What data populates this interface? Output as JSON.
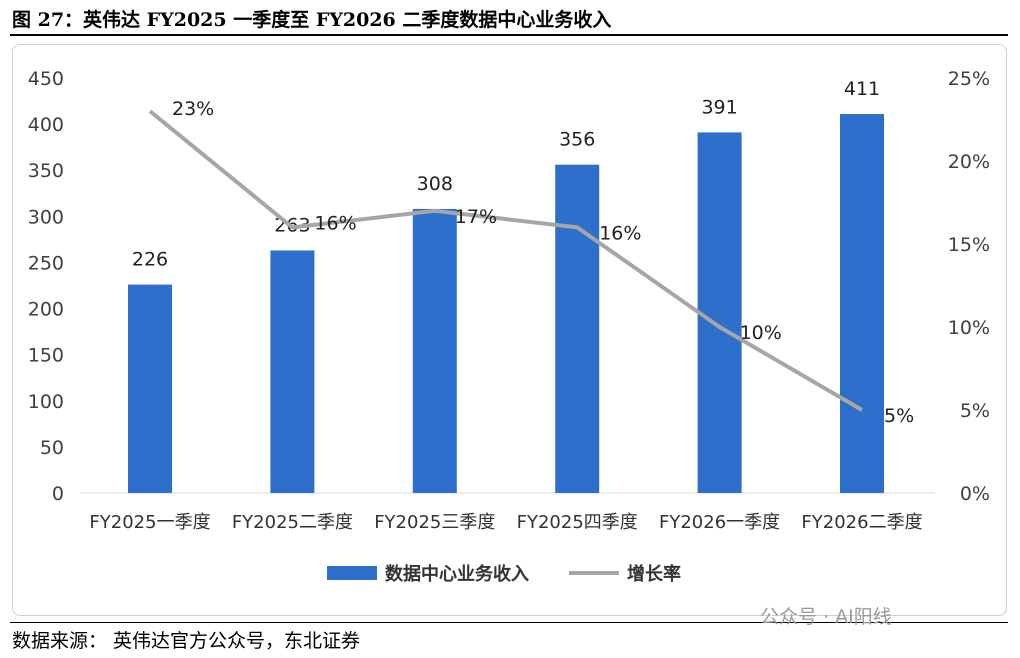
{
  "title": "图 27：英伟达 FY2025 一季度至 FY2026 二季度数据中心业务收入",
  "source": "数据来源：  英伟达官方公众号，东北证券",
  "watermark": "公众号 · AI阳线",
  "chart_data": {
    "type": "bar+line",
    "categories": [
      "FY2025一季度",
      "FY2025二季度",
      "FY2025三季度",
      "FY2025四季度",
      "FY2026一季度",
      "FY2026二季度"
    ],
    "series": [
      {
        "name": "数据中心业务收入",
        "type": "bar",
        "axis": "left",
        "color": "#2e6fcc",
        "values": [
          226,
          263,
          308,
          356,
          391,
          411
        ]
      },
      {
        "name": "增长率",
        "type": "line",
        "axis": "right",
        "color": "#a6a6a6",
        "values": [
          23,
          16,
          17,
          16,
          10,
          5
        ],
        "labels": [
          "23%",
          "16%",
          "17%",
          "16%",
          "10%",
          "5%"
        ]
      }
    ],
    "left_axis": {
      "range": [
        0,
        450
      ],
      "ticks": [
        "0",
        "50",
        "100",
        "150",
        "200",
        "250",
        "300",
        "350",
        "400",
        "450"
      ]
    },
    "right_axis": {
      "range": [
        0,
        25
      ],
      "ticks": [
        "0%",
        "5%",
        "10%",
        "15%",
        "20%",
        "25%"
      ]
    },
    "legend": "bottom",
    "grid": false
  }
}
